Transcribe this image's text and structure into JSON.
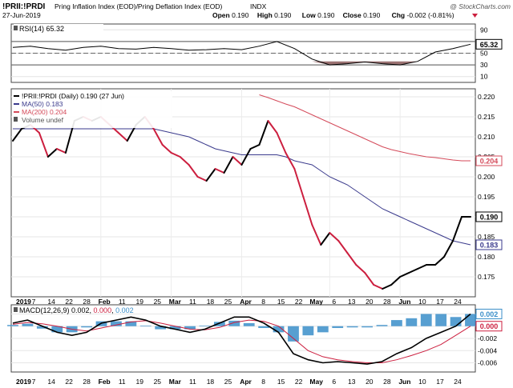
{
  "header": {
    "symbol": "!PRII:!PRDI",
    "name": "Pring Inflation Index (EOD)/Pring Deflation Index (EOD)",
    "exchange": "INDX",
    "credit": "@ StockCharts.com",
    "date": "27-Jun-2019",
    "ohlc": [
      {
        "label": "Open",
        "value": "0.190"
      },
      {
        "label": "High",
        "value": "0.190"
      },
      {
        "label": "Low",
        "value": "0.190"
      },
      {
        "label": "Close",
        "value": "0.190"
      },
      {
        "label": "Chg",
        "value": "-0.002 (-0.81%)"
      }
    ]
  },
  "chart_data": [
    {
      "type": "line",
      "panel": "rsi",
      "label": "RSI(14) 65.32",
      "last_value_tag": "65.32",
      "ylim": [
        0,
        100
      ],
      "y_ticks": [
        90,
        70,
        50,
        30,
        10
      ],
      "reference_lines": [
        70,
        30
      ],
      "midline": 50,
      "grid": true,
      "colors": {
        "line": "#000000",
        "oversold_fill": "#8b5a5a"
      },
      "x": [
        "Jan 2",
        "Jan 7",
        "Jan 14",
        "Jan 22",
        "Jan 28",
        "Feb 4",
        "Feb 11",
        "Feb 19",
        "Feb 25",
        "Mar 4",
        "Mar 11",
        "Mar 18",
        "Mar 25",
        "Apr 1",
        "Apr 8",
        "Apr 15",
        "Apr 22",
        "Apr 29",
        "May 6",
        "May 13",
        "May 20",
        "May 28",
        "Jun 3",
        "Jun 10",
        "Jun 17",
        "Jun 24",
        "Jun 27"
      ],
      "values": [
        60,
        62,
        58,
        55,
        60,
        62,
        58,
        57,
        60,
        58,
        55,
        56,
        58,
        56,
        62,
        70,
        58,
        40,
        30,
        32,
        35,
        32,
        30,
        36,
        52,
        58,
        65.32
      ]
    },
    {
      "type": "line",
      "panel": "price",
      "legend": [
        {
          "name": "!PRII:!PRDI (Daily) 0.190 (27 Jun)",
          "color": "#000000"
        },
        {
          "name": "MA(50) 0.183",
          "color": "#3a3a8c"
        },
        {
          "name": "MA(200) 0.204",
          "color": "#d44a5a"
        },
        {
          "name": "Volume undef",
          "color": "#555555"
        }
      ],
      "legend_position": "top-left",
      "ylim": [
        0.17,
        0.222
      ],
      "y_ticks": [
        0.22,
        0.215,
        0.21,
        0.205,
        0.2,
        0.195,
        0.19,
        0.185,
        0.18,
        0.175
      ],
      "y_tick_labels": [
        "0.220",
        "0.215",
        "0.210",
        "0.205",
        "0.200",
        "0.195",
        "0.190",
        "0.185",
        "0.180",
        "0.175"
      ],
      "last_value_tags": [
        {
          "label": "0.204",
          "value": 0.204,
          "color": "#d44a5a"
        },
        {
          "label": "0.190",
          "value": 0.19,
          "color": "#000000"
        },
        {
          "label": "0.183",
          "value": 0.183,
          "color": "#3a3a8c"
        }
      ],
      "grid": true,
      "x": [
        "Jan 2",
        "Jan 4",
        "Jan 7",
        "Jan 11",
        "Jan 14",
        "Jan 18",
        "Jan 22",
        "Jan 25",
        "Jan 28",
        "Feb 1",
        "Feb 4",
        "Feb 8",
        "Feb 11",
        "Feb 15",
        "Feb 19",
        "Feb 22",
        "Feb 25",
        "Mar 1",
        "Mar 4",
        "Mar 8",
        "Mar 11",
        "Mar 15",
        "Mar 18",
        "Mar 22",
        "Mar 25",
        "Mar 29",
        "Apr 1",
        "Apr 5",
        "Apr 8",
        "Apr 12",
        "Apr 15",
        "Apr 18",
        "Apr 22",
        "Apr 26",
        "Apr 29",
        "May 3",
        "May 6",
        "May 10",
        "May 13",
        "May 17",
        "May 20",
        "May 24",
        "May 28",
        "May 31",
        "Jun 3",
        "Jun 7",
        "Jun 10",
        "Jun 14",
        "Jun 17",
        "Jun 20",
        "Jun 24",
        "Jun 26",
        "Jun 27"
      ],
      "series": [
        {
          "name": "!PRII:!PRDI",
          "color": "#000000",
          "down_color": "#cc1f3f",
          "values": [
            0.209,
            0.212,
            0.213,
            0.211,
            0.205,
            0.207,
            0.206,
            0.214,
            0.215,
            0.214,
            0.215,
            0.213,
            0.211,
            0.209,
            0.213,
            0.215,
            0.212,
            0.208,
            0.206,
            0.205,
            0.203,
            0.2,
            0.199,
            0.202,
            0.201,
            0.205,
            0.203,
            0.207,
            0.208,
            0.214,
            0.211,
            0.206,
            0.202,
            0.195,
            0.188,
            0.183,
            0.186,
            0.184,
            0.181,
            0.178,
            0.176,
            0.173,
            0.172,
            0.173,
            0.175,
            0.176,
            0.177,
            0.178,
            0.178,
            0.18,
            0.184,
            0.19,
            0.19
          ]
        },
        {
          "name": "MA(50)",
          "color": "#3a3a8c",
          "values": [
            0.212,
            0.212,
            0.212,
            0.212,
            0.212,
            0.212,
            0.212,
            0.212,
            0.212,
            0.212,
            0.212,
            0.212,
            0.212,
            0.212,
            0.212,
            0.212,
            0.212,
            0.2115,
            0.211,
            0.2105,
            0.21,
            0.209,
            0.208,
            0.207,
            0.2065,
            0.206,
            0.2055,
            0.2055,
            0.2055,
            0.2055,
            0.2055,
            0.205,
            0.204,
            0.2035,
            0.203,
            0.2015,
            0.2,
            0.199,
            0.198,
            0.1965,
            0.195,
            0.1935,
            0.192,
            0.191,
            0.19,
            0.189,
            0.188,
            0.187,
            0.186,
            0.185,
            0.184,
            0.1835,
            0.183
          ]
        },
        {
          "name": "MA(200)",
          "color": "#d44a5a",
          "values": [
            null,
            null,
            null,
            null,
            null,
            null,
            null,
            null,
            null,
            null,
            null,
            null,
            null,
            null,
            null,
            null,
            null,
            null,
            null,
            null,
            null,
            null,
            null,
            null,
            null,
            null,
            null,
            null,
            0.2205,
            0.2198,
            0.219,
            0.2182,
            0.2175,
            0.2165,
            0.2155,
            0.2145,
            0.2135,
            0.2125,
            0.2115,
            0.2105,
            0.2095,
            0.2085,
            0.2075,
            0.2068,
            0.2063,
            0.2058,
            0.2054,
            0.205,
            0.2048,
            0.2045,
            0.2042,
            0.204,
            0.204
          ]
        }
      ]
    },
    {
      "type": "line",
      "panel": "macd",
      "label": "MACD(12,26,9) 0.002, 0.000, 0.002",
      "label_parts": [
        {
          "text": "MACD(12,26,9) 0.002, ",
          "color": "#000000"
        },
        {
          "text": "0.000",
          "color": "#cc1f3f"
        },
        {
          "text": ", ",
          "color": "#000000"
        },
        {
          "text": "0.002",
          "color": "#3a8ec9"
        }
      ],
      "ylim": [
        -0.0075,
        0.0035
      ],
      "y_ticks": [
        0.002,
        0.0,
        -0.002,
        -0.004,
        -0.006
      ],
      "y_tick_labels": [
        "0.002",
        "0.000",
        "-0.002",
        "-0.004",
        "-0.006"
      ],
      "last_value_tags": [
        {
          "label": "0.002",
          "value": 0.002,
          "color": "#3a8ec9"
        },
        {
          "label": "0.000",
          "value": 0.0,
          "color": "#cc1f3f"
        }
      ],
      "grid": true,
      "x_labels": [
        "2019",
        "7",
        "14",
        "22",
        "28",
        "Feb",
        "11",
        "19",
        "25",
        "Mar",
        "11",
        "18",
        "25",
        "Apr",
        "8",
        "15",
        "22",
        "May",
        "6",
        "13",
        "20",
        "28",
        "Jun",
        "10",
        "17",
        "24"
      ],
      "series": [
        {
          "name": "MACD",
          "color": "#000000",
          "values": [
            0.0005,
            0.001,
            0.0,
            -0.001,
            -0.0015,
            -0.001,
            0.0005,
            0.001,
            0.0015,
            0.001,
            0.0,
            -0.0005,
            -0.001,
            -0.0005,
            0.0005,
            0.0015,
            0.0015,
            0.0005,
            -0.001,
            -0.0045,
            -0.0055,
            -0.006,
            -0.0058,
            -0.006,
            -0.0062,
            -0.0058,
            -0.0045,
            -0.0035,
            -0.002,
            -0.001,
            0.0,
            0.002
          ]
        },
        {
          "name": "Signal",
          "color": "#cc1f3f",
          "values": [
            0.0003,
            0.0006,
            0.0004,
            0.0,
            -0.0005,
            -0.0008,
            -0.0003,
            0.0002,
            0.0007,
            0.0009,
            0.0005,
            0.0,
            -0.0005,
            -0.0006,
            -0.0002,
            0.0006,
            0.001,
            0.0008,
            0.0,
            -0.002,
            -0.004,
            -0.005,
            -0.0055,
            -0.0058,
            -0.006,
            -0.006,
            -0.0055,
            -0.0048,
            -0.004,
            -0.003,
            -0.0015,
            0.0
          ]
        },
        {
          "name": "Histogram",
          "color": "#3a8ec9",
          "type": "bar",
          "values": [
            0.0002,
            0.0004,
            -0.0004,
            -0.001,
            -0.001,
            -0.0002,
            0.0008,
            0.0008,
            0.0008,
            0.0001,
            -0.0005,
            -0.0005,
            -0.0005,
            0.0001,
            0.0007,
            0.0009,
            0.0005,
            -0.0003,
            -0.001,
            -0.0025,
            -0.0015,
            -0.001,
            -0.0003,
            -0.0002,
            -0.0002,
            0.0002,
            0.001,
            0.0013,
            0.002,
            0.002,
            0.0015,
            0.002
          ]
        }
      ]
    }
  ]
}
